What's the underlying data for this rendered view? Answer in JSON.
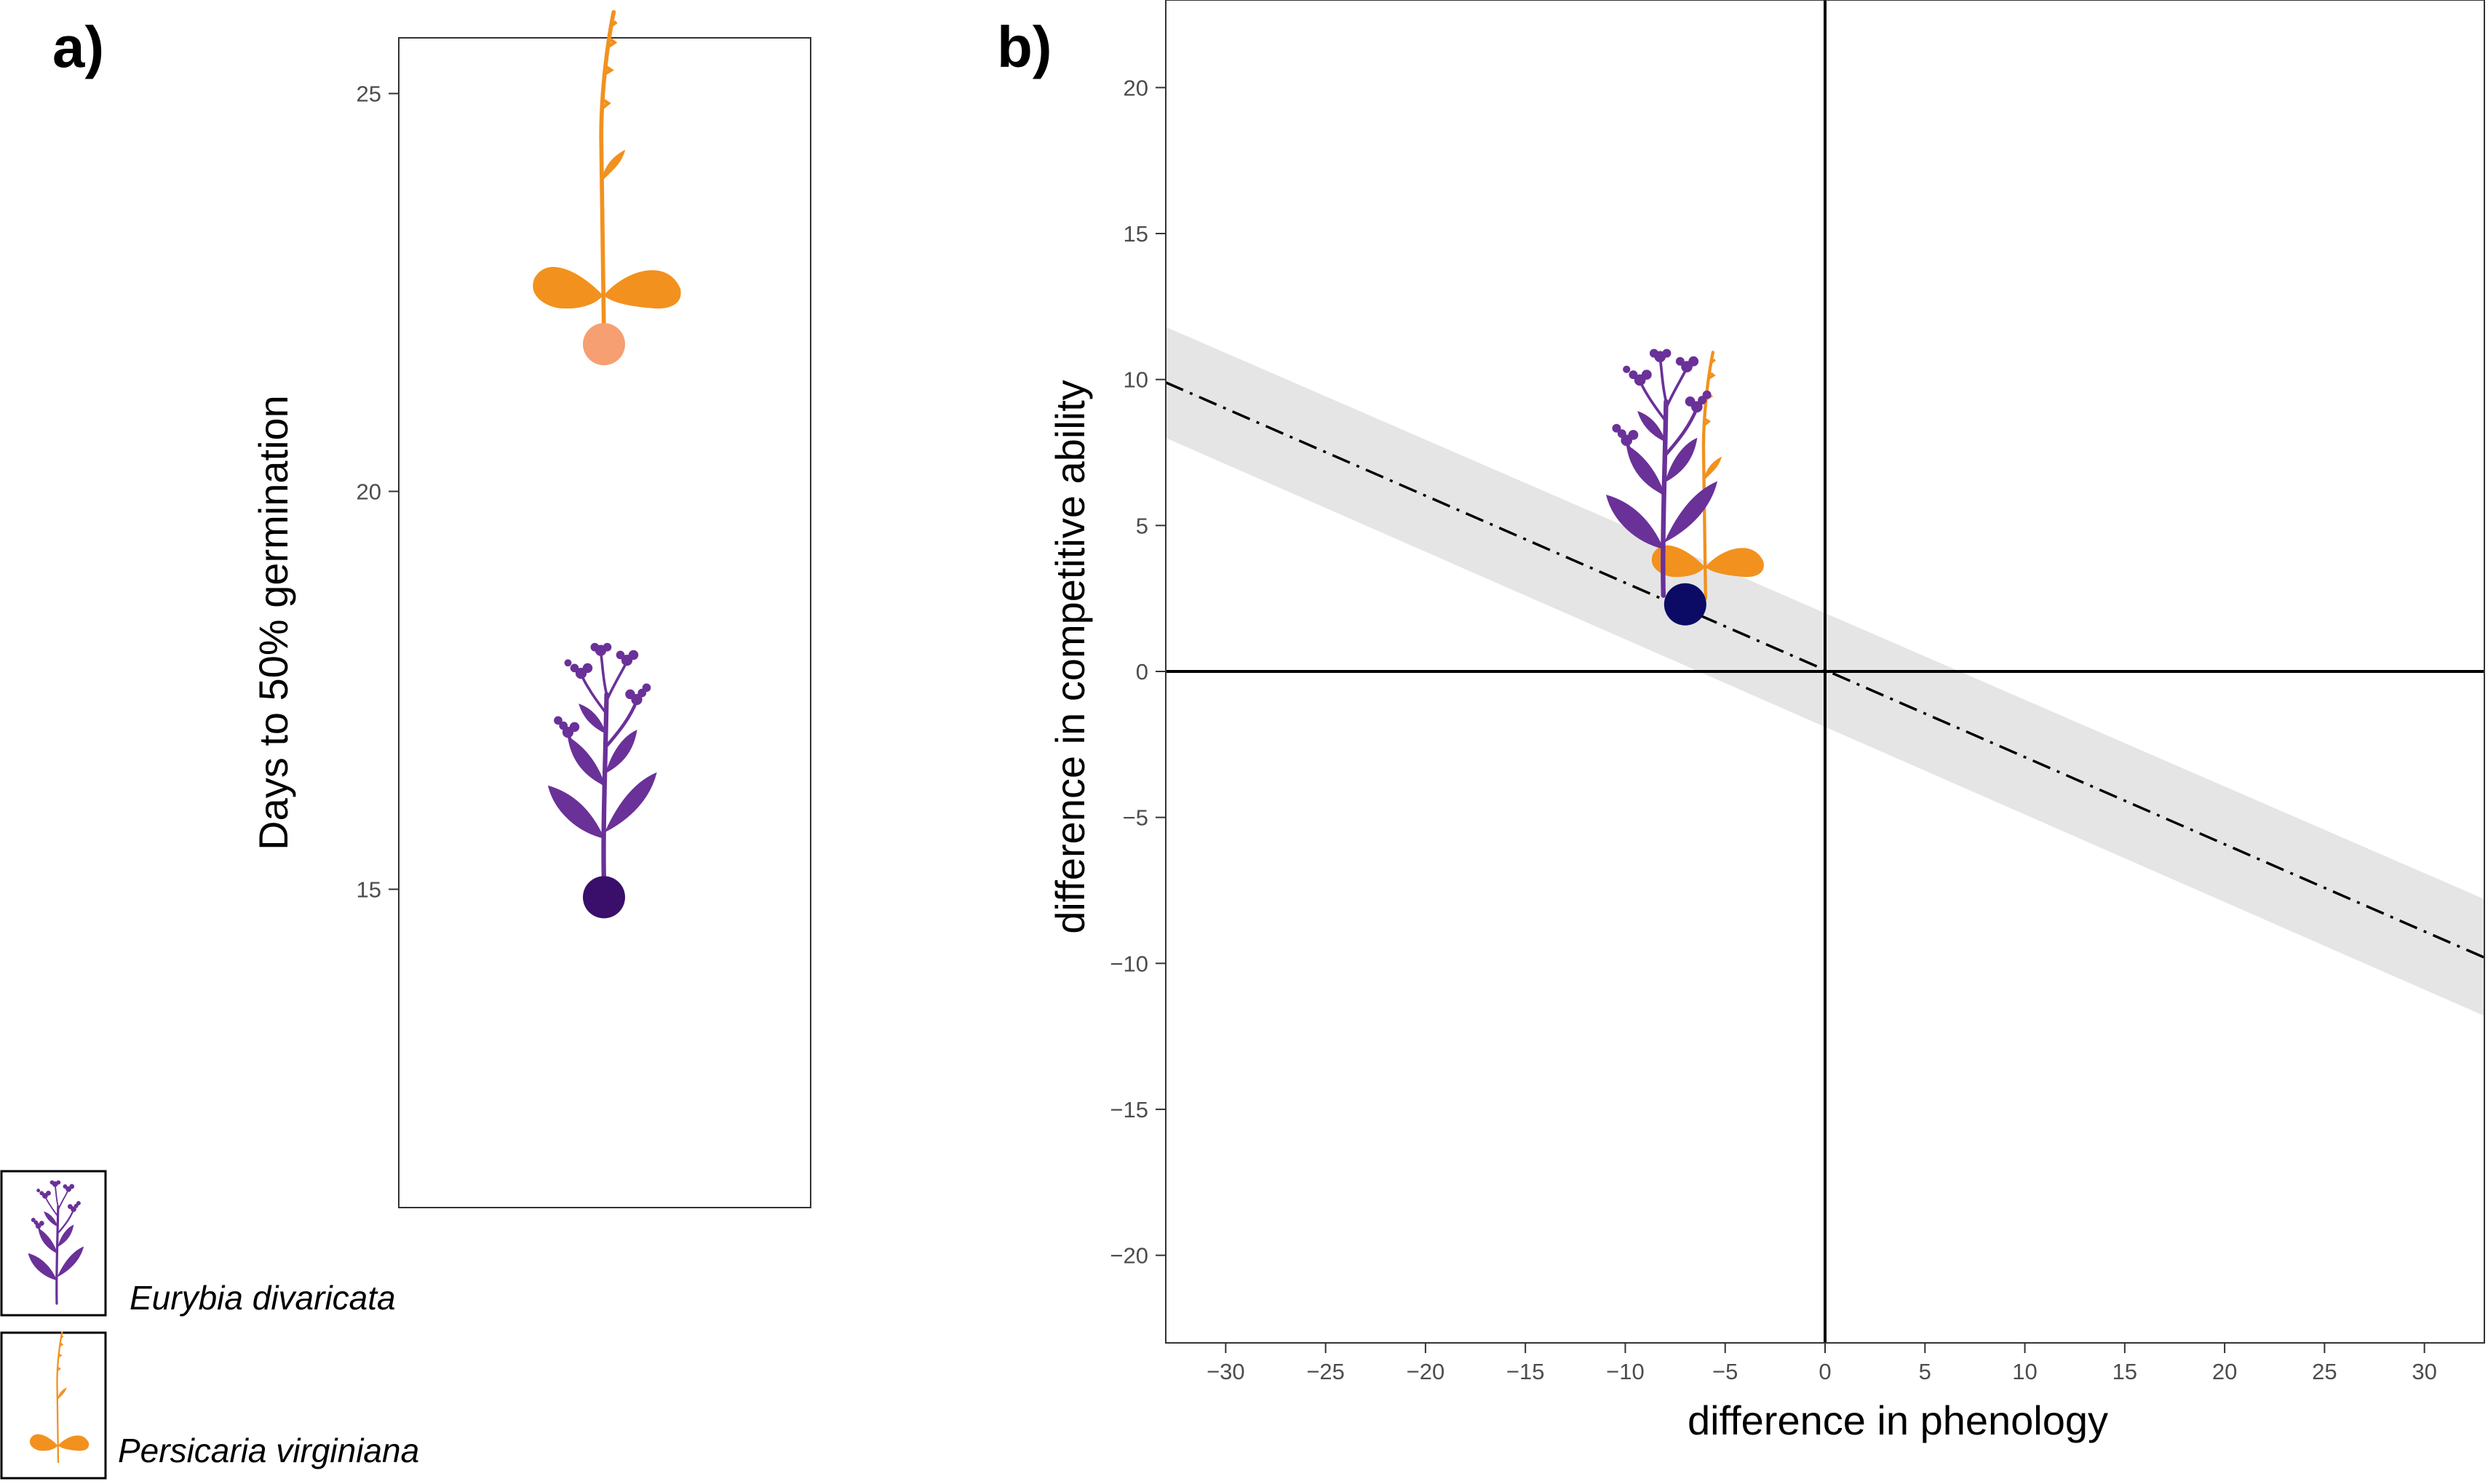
{
  "colors": {
    "eurybia": "#6a3199",
    "persicaria": "#f2911e",
    "point_a_eurybia": "#3a0e6b",
    "point_a_persicaria": "#f59f73",
    "point_b": "#0b0b66",
    "ribbon": "#e5e5e5"
  },
  "chart_data": [
    {
      "panel": "a)",
      "type": "scatter",
      "title": "",
      "xlabel": "",
      "ylabel": "Days to 50% germination",
      "ylim": [
        11,
        25.7
      ],
      "yticks": [
        15,
        20,
        25
      ],
      "grid": false,
      "points": [
        {
          "series": "Eurybia divaricata",
          "y": 14.9,
          "color_key": "point_a_eurybia",
          "icon": "eurybia-plant-icon"
        },
        {
          "series": "Persicaria virginiana",
          "y": 21.85,
          "color_key": "point_a_persicaria",
          "icon": "persicaria-plant-icon"
        }
      ]
    },
    {
      "panel": "b)",
      "type": "scatter",
      "title": "",
      "xlabel": "difference in phenology",
      "ylabel": "difference in competitive ability",
      "xlim": [
        -33,
        33
      ],
      "ylim": [
        -23,
        23
      ],
      "xticks": [
        -30,
        -25,
        -20,
        -15,
        -10,
        -5,
        0,
        5,
        10,
        15,
        20,
        25,
        30
      ],
      "yticks": [
        -20,
        -15,
        -10,
        -5,
        0,
        5,
        10,
        15,
        20
      ],
      "grid": false,
      "reference_lines": {
        "x": 0,
        "y": 0
      },
      "fit_line": {
        "x": [
          -33,
          33
        ],
        "y": [
          9.9,
          -9.8
        ],
        "style": "dash-dot"
      },
      "confidence_band": {
        "x": [
          -33,
          33
        ],
        "upper": [
          11.8,
          -7.8
        ],
        "lower": [
          8.0,
          -11.8
        ]
      },
      "points": [
        {
          "x": -7,
          "y": 2.3,
          "color_key": "point_b",
          "icons": [
            "eurybia-plant-icon",
            "persicaria-plant-icon"
          ]
        }
      ]
    }
  ],
  "legend": {
    "position": "bottom-left",
    "items": [
      {
        "label": "Eurybia divaricata",
        "icon": "eurybia-plant-icon",
        "color_key": "eurybia"
      },
      {
        "label": "Persicaria virginiana",
        "icon": "persicaria-plant-icon",
        "color_key": "persicaria"
      }
    ]
  }
}
